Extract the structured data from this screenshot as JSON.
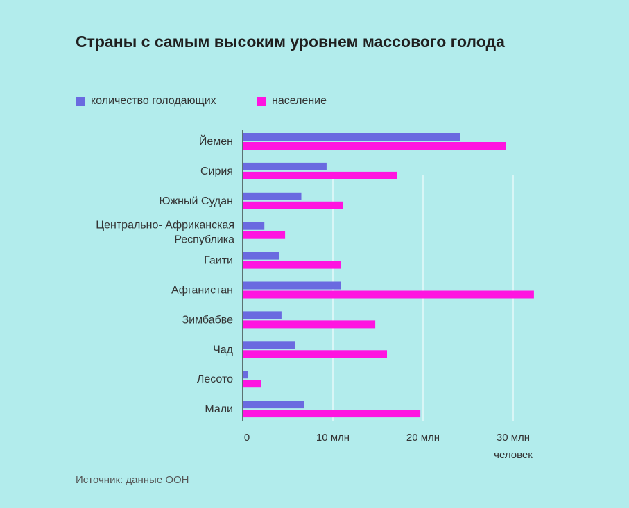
{
  "chart_data": {
    "type": "bar",
    "orientation": "horizontal",
    "title": "Страны с самым высоким уровнем массового голода",
    "categories": [
      [
        "Йемен"
      ],
      [
        "Сирия"
      ],
      [
        "Южный Судан"
      ],
      [
        "Центрально- Африканская",
        "Республика"
      ],
      [
        "Гаити"
      ],
      [
        "Афганистан"
      ],
      [
        "Зимбабве"
      ],
      [
        "Чад"
      ],
      [
        "Лесото"
      ],
      [
        "Мали"
      ]
    ],
    "series": [
      {
        "name": "количество голодающих",
        "color": "#6a6ae0",
        "values": [
          24.1,
          9.3,
          6.5,
          2.4,
          4.0,
          10.9,
          4.3,
          5.8,
          0.6,
          6.8
        ]
      },
      {
        "name": "население",
        "color": "#ff14e0",
        "values": [
          29.2,
          17.1,
          11.1,
          4.7,
          10.9,
          32.3,
          14.7,
          16.0,
          2.0,
          19.7
        ]
      }
    ],
    "xlim": [
      0,
      32
    ],
    "x_ticks": [
      {
        "value": 0,
        "label": "0"
      },
      {
        "value": 10,
        "label": "10 млн"
      },
      {
        "value": 20,
        "label": "20 млн"
      },
      {
        "value": 30,
        "label": "30 млн"
      }
    ],
    "x_unit": "человек",
    "grid": true,
    "legend_position": "top-left"
  },
  "source": "Источник: данные ООН"
}
